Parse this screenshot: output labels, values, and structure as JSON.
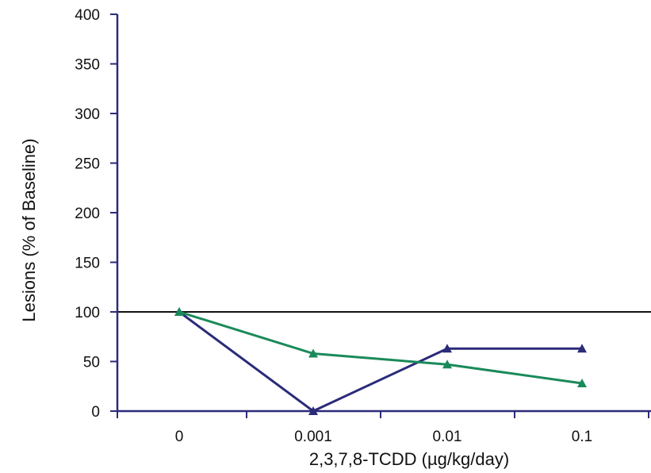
{
  "chart_data": {
    "type": "line",
    "categories": [
      "0",
      "0.001",
      "0.01",
      "0.1"
    ],
    "xlabel": "2,3,7,8-TCDD (µg/kg/day)",
    "ylabel": "Lesions (% of Baseline)",
    "ylim": [
      0,
      400
    ],
    "yticks": [
      "0",
      "50",
      "100",
      "150",
      "200",
      "250",
      "300",
      "350",
      "400"
    ],
    "grid": false,
    "reference_line": {
      "value": 100,
      "color": "#111111"
    },
    "series": [
      {
        "values": [
          100,
          0,
          63,
          63
        ],
        "color": "#2b2b7a",
        "marker": "triangle"
      },
      {
        "values": [
          100,
          58,
          47,
          28
        ],
        "color": "#1a8a5a",
        "marker": "triangle"
      }
    ]
  }
}
